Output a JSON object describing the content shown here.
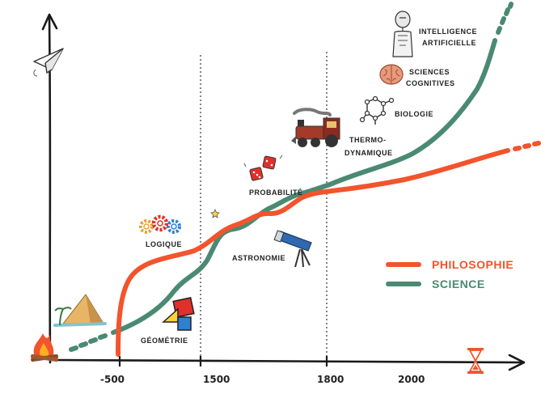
{
  "axis_ticks": [
    "-500",
    "1500",
    "1800",
    "2000"
  ],
  "labels": {
    "geometrie": "GÉOMÉTRIE",
    "logique": "LOGIQUE",
    "astronomie": "ASTRONOMIE",
    "probabilite": "PROBABILITÉ",
    "thermo_1": "THERMO-",
    "thermo_2": "DYNAMIQUE",
    "biologie": "BIOLOGIE",
    "sciences_cog_1": "SCIENCES",
    "sciences_cog_2": "COGNITIVES",
    "ia_1": "INTELLIGENCE",
    "ia_2": "ARTIFICIELLE"
  },
  "legend": {
    "philosophie": "PHILOSOPHIE",
    "science": "SCIENCE"
  },
  "colors": {
    "philosophie": "#f2542d",
    "science": "#4a8a72",
    "axis": "#1a1a1a"
  },
  "icons": [
    "paper-plane-icon",
    "campfire-icon",
    "pyramid-icon",
    "geometry-shapes-icon",
    "gears-icon",
    "star-icon",
    "telescope-icon",
    "dice-icon",
    "locomotive-icon",
    "molecule-icon",
    "brain-icon",
    "robot-icon",
    "hourglass-icon"
  ]
}
